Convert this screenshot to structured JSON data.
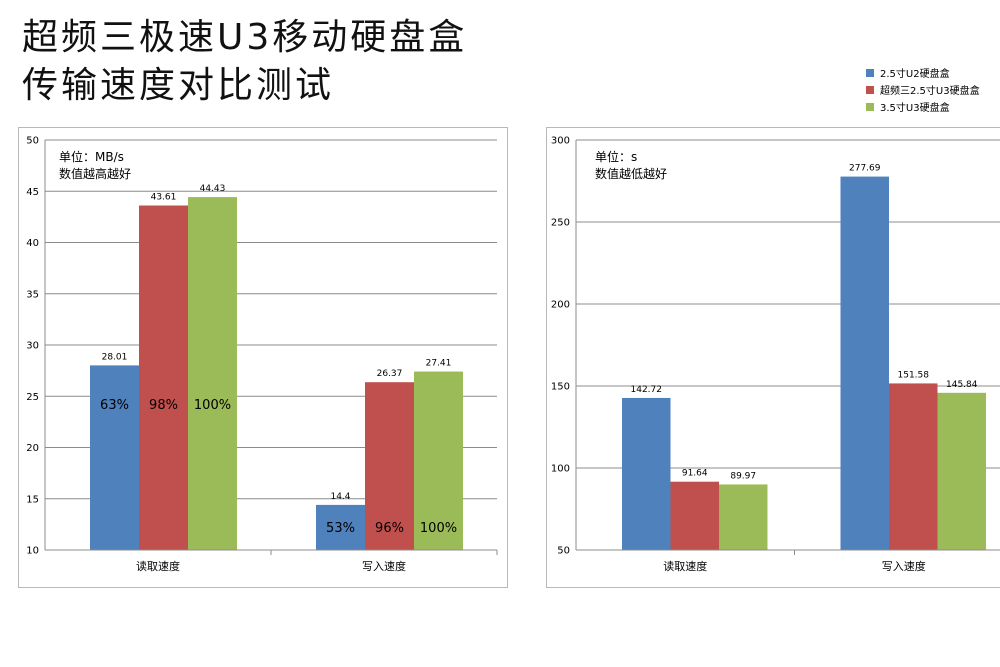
{
  "title_lines": [
    "超频三极速U3移动硬盘盒",
    "传输速度对比测试"
  ],
  "legend": [
    {
      "label": "2.5寸U2硬盘盒",
      "color": "#4f81bd"
    },
    {
      "label": "超频三2.5寸U3硬盘盒",
      "color": "#c0504d"
    },
    {
      "label": "3.5寸U3硬盘盒",
      "color": "#9bbb59"
    }
  ],
  "chart_data": [
    {
      "type": "bar",
      "note_lines": [
        "单位：MB/s",
        "数值越高越好"
      ],
      "categories": [
        "读取速度",
        "写入速度"
      ],
      "series": [
        {
          "name": "2.5寸U2硬盘盒",
          "values": [
            28.01,
            14.4
          ],
          "inner_labels": [
            "63%",
            "53%"
          ]
        },
        {
          "name": "超频三2.5寸U3硬盘盒",
          "values": [
            43.61,
            26.37
          ],
          "inner_labels": [
            "98%",
            "96%"
          ]
        },
        {
          "name": "3.5寸U3硬盘盒",
          "values": [
            44.43,
            27.41
          ],
          "inner_labels": [
            "100%",
            "100%"
          ]
        }
      ],
      "ylim": [
        10,
        50
      ],
      "yticks": [
        10,
        15,
        20,
        25,
        30,
        35,
        40,
        45,
        50
      ],
      "grid": true,
      "legend": "top-right"
    },
    {
      "type": "bar",
      "note_lines": [
        "单位：s",
        "数值越低越好"
      ],
      "categories": [
        "读取速度",
        "写入速度"
      ],
      "series": [
        {
          "name": "2.5寸U2硬盘盒",
          "values": [
            142.72,
            277.69
          ]
        },
        {
          "name": "超频三2.5寸U3硬盘盒",
          "values": [
            91.64,
            151.58
          ]
        },
        {
          "name": "3.5寸U3硬盘盒",
          "values": [
            89.97,
            145.84
          ]
        }
      ],
      "ylim": [
        50,
        300
      ],
      "yticks": [
        50,
        100,
        150,
        200,
        250,
        300
      ],
      "grid": true,
      "legend": "top-right"
    }
  ]
}
